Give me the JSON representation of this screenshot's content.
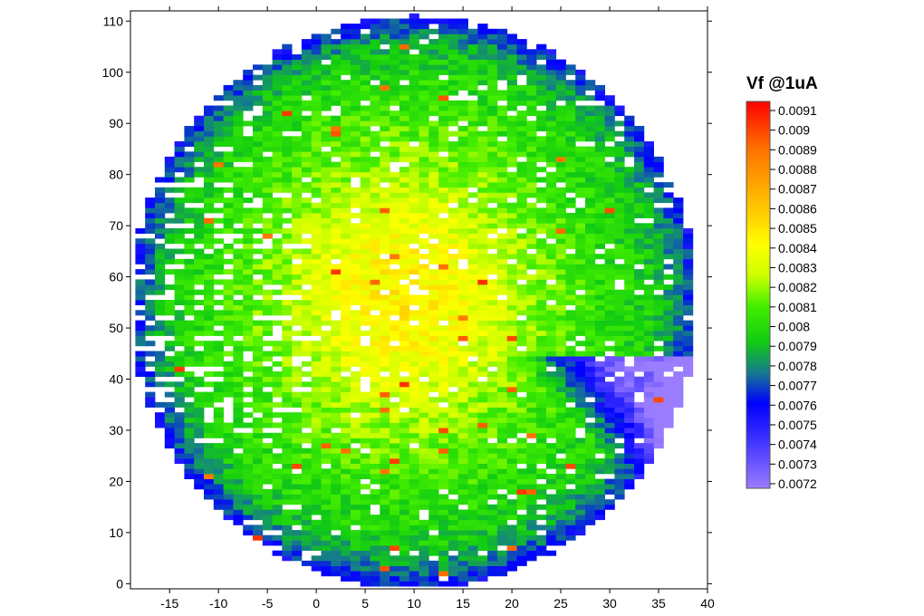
{
  "chart_data": {
    "type": "heatmap",
    "title": "",
    "xlabel": "",
    "ylabel": "",
    "xlim": [
      -19,
      40
    ],
    "ylim": [
      -1,
      112
    ],
    "x_ticks": [
      -15,
      -10,
      -5,
      0,
      5,
      10,
      15,
      20,
      25,
      30,
      35,
      40
    ],
    "y_ticks": [
      0,
      10,
      20,
      30,
      40,
      50,
      60,
      70,
      80,
      90,
      100,
      110
    ],
    "grid": false,
    "wafer_map": {
      "x_range": [
        -18,
        39
      ],
      "y_range": [
        0,
        111
      ],
      "center": [
        10,
        55
      ],
      "radius_x": 29,
      "radius_y": 56
    },
    "colorbar": {
      "title": "Vf @1uA",
      "min": 0.0072,
      "max": 0.0092,
      "tick_labels": [
        "0.0091",
        "0.009",
        "0.0089",
        "0.0088",
        "0.0087",
        "0.0086",
        "0.0085",
        "0.0084",
        "0.0083",
        "0.0082",
        "0.0081",
        "0.008",
        "0.0079",
        "0.0078",
        "0.0077",
        "0.0076",
        "0.0075",
        "0.0074",
        "0.0073",
        "0.0072"
      ],
      "tick_values": [
        0.0091,
        0.009,
        0.0089,
        0.0088,
        0.0087,
        0.0086,
        0.0085,
        0.0084,
        0.0083,
        0.0082,
        0.0081,
        0.008,
        0.0079,
        0.0078,
        0.0077,
        0.0076,
        0.0075,
        0.0074,
        0.0073,
        0.0072
      ],
      "colors": [
        "#9a7cff",
        "#3a2fff",
        "#0000ff",
        "#157c8c",
        "#11cc11",
        "#44ee00",
        "#ccff00",
        "#ffff00",
        "#ffd400",
        "#ffa800",
        "#ff7000",
        "#ff0000"
      ]
    }
  }
}
